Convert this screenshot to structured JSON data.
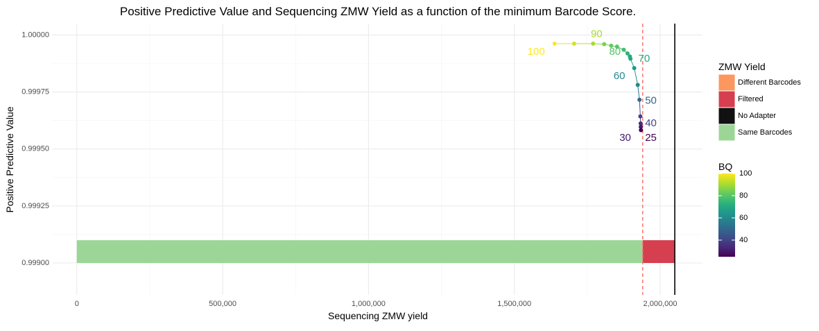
{
  "chart_data": {
    "type": "scatter",
    "title": "Positive Predictive Value and Sequencing ZMW Yield as a function of the minimum Barcode Score.",
    "xlabel": "Sequencing ZMW yield",
    "ylabel": "Positive Predictive Value",
    "xlim": [
      -85000,
      2145000
    ],
    "ylim": [
      0.99886,
      1.00005
    ],
    "x_ticks": [
      0,
      500000,
      1000000,
      1500000,
      2000000
    ],
    "x_tick_labels": [
      "0",
      "500,000",
      "1,000,000",
      "1,500,000",
      "2,000,000"
    ],
    "y_ticks": [
      0.999,
      0.99925,
      0.9995,
      0.99975,
      1.0
    ],
    "y_tick_labels": [
      "0.99900",
      "0.99925",
      "0.99950",
      "0.99975",
      "1.00000"
    ],
    "grid": true,
    "yield_bar": {
      "y_bottom": 0.999,
      "y_top": 0.9991,
      "segments": [
        {
          "category": "Same Barcodes",
          "start": 0,
          "end": 1940000,
          "color": "#9cd696"
        },
        {
          "category": "Filtered",
          "start": 1940000,
          "end": 2050000,
          "color": "#d53f50"
        },
        {
          "category": "Different Barcodes",
          "start": 2050000,
          "end": 2050000,
          "color": "#fc9760"
        },
        {
          "category": "No Adapter",
          "start": 2050000,
          "end": 2050000,
          "color": "#111111"
        }
      ]
    },
    "ppv_curve": [
      {
        "bq": 100,
        "x": 1638000,
        "y": 0.999962
      },
      {
        "bq": 95,
        "x": 1705000,
        "y": 0.999962
      },
      {
        "bq": 90,
        "x": 1770000,
        "y": 0.999962
      },
      {
        "bq": 85,
        "x": 1808000,
        "y": 0.99996
      },
      {
        "bq": 82,
        "x": 1832000,
        "y": 0.999953
      },
      {
        "bq": 80,
        "x": 1852000,
        "y": 0.999949
      },
      {
        "bq": 77,
        "x": 1875000,
        "y": 0.999935
      },
      {
        "bq": 73,
        "x": 1888000,
        "y": 0.999919
      },
      {
        "bq": 71,
        "x": 1896000,
        "y": 0.999906
      },
      {
        "bq": 70,
        "x": 1898000,
        "y": 0.999896
      },
      {
        "bq": 65,
        "x": 1911000,
        "y": 0.999855
      },
      {
        "bq": 60,
        "x": 1923000,
        "y": 0.999781
      },
      {
        "bq": 50,
        "x": 1929000,
        "y": 0.999716
      },
      {
        "bq": 40,
        "x": 1932000,
        "y": 0.999643
      },
      {
        "bq": 35,
        "x": 1933000,
        "y": 0.999612
      },
      {
        "bq": 30,
        "x": 1933500,
        "y": 0.999597
      },
      {
        "bq": 25,
        "x": 1934000,
        "y": 0.999583
      }
    ],
    "bq_labels": [
      {
        "text": "100",
        "bq": 100,
        "x": 1575000,
        "y": 0.999925
      },
      {
        "text": "90",
        "bq": 90,
        "x": 1782000,
        "y": 1.000002
      },
      {
        "text": "80",
        "bq": 80,
        "x": 1845000,
        "y": 0.999925
      },
      {
        "text": "70",
        "bq": 70,
        "x": 1945000,
        "y": 0.999895
      },
      {
        "text": "60",
        "bq": 60,
        "x": 1860000,
        "y": 0.999818
      },
      {
        "text": "50",
        "bq": 50,
        "x": 1968000,
        "y": 0.99971
      },
      {
        "text": "40",
        "bq": 40,
        "x": 1968000,
        "y": 0.999612
      },
      {
        "text": "30",
        "bq": 30,
        "x": 1880000,
        "y": 0.999548
      },
      {
        "text": "25",
        "bq": 25,
        "x": 1968000,
        "y": 0.999548
      }
    ],
    "vlines": [
      {
        "x": 1940000,
        "style": "dashed",
        "color": "#f8766d"
      },
      {
        "x": 2050000,
        "style": "solid",
        "color": "#000000"
      }
    ],
    "legend_position": "right",
    "fill_legend": {
      "title": "ZMW Yield",
      "items": [
        {
          "label": "Different Barcodes",
          "color": "#fc9760"
        },
        {
          "label": "Filtered",
          "color": "#d53f50"
        },
        {
          "label": "No Adapter",
          "color": "#111111"
        },
        {
          "label": "Same Barcodes",
          "color": "#9cd696"
        }
      ]
    },
    "color_legend": {
      "title": "BQ",
      "range": [
        25,
        100
      ],
      "ticks": [
        40,
        60,
        80,
        100
      ],
      "tick_labels": [
        "40",
        "60",
        "80",
        "100"
      ],
      "colormap": "viridis"
    }
  }
}
